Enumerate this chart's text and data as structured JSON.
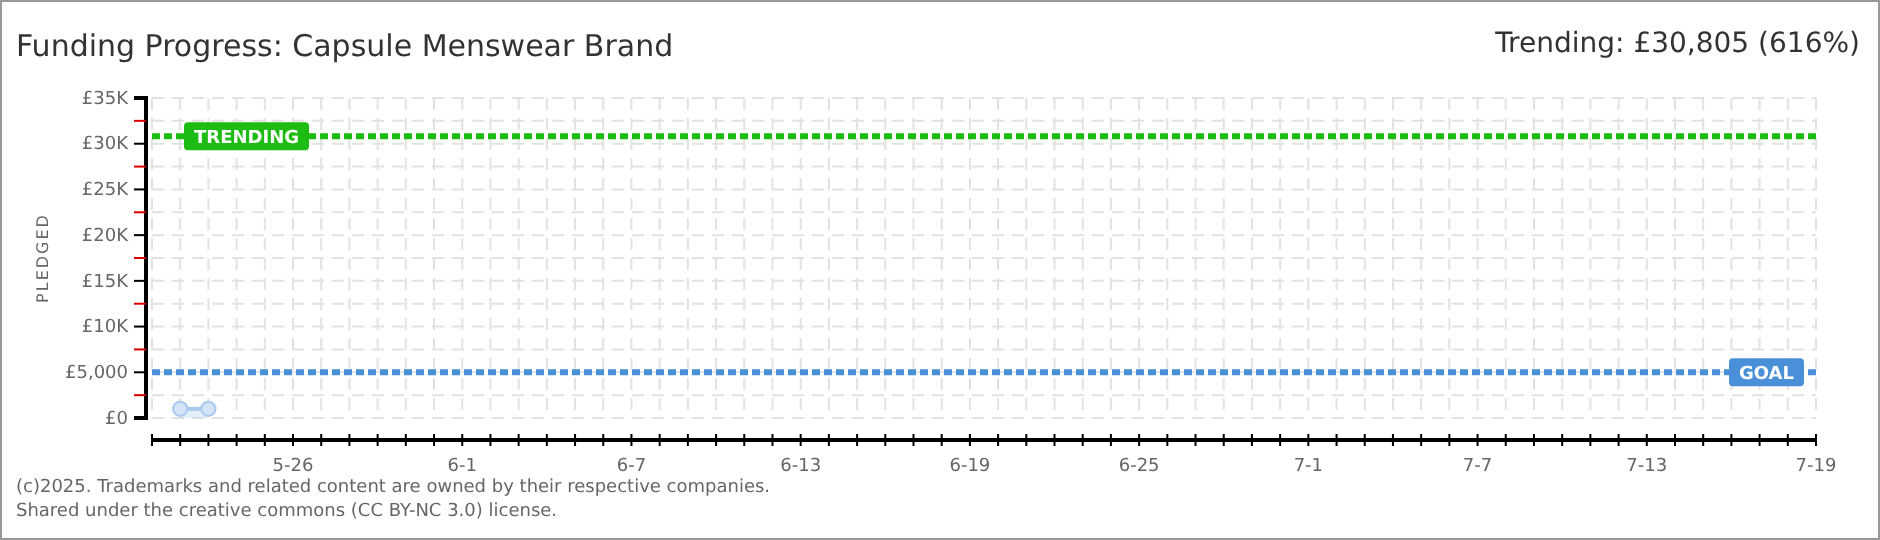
{
  "chart_data": {
    "type": "area",
    "title": "Funding Progress: Capsule Menswear Brand",
    "ylabel": "PLEDGED",
    "annotations": [
      "Trending:  £30,805 (616%)",
      "(c)2025. Trademarks and related content are owned by their respective companies.",
      "Shared under the creative commons (CC BY-NC 3.0) license."
    ],
    "x": [
      "--05-22",
      "--05-23"
    ],
    "series": [
      {
        "color": "#a9c9ef",
        "values": [
          1000,
          1000
        ]
      }
    ],
    "marker": "circle",
    "grid": true,
    "xlim": [
      "--05-21",
      "--07-19"
    ],
    "xticks": [
      {
        "value": "--05-21",
        "label": null
      },
      {
        "value": "--05-22",
        "label": null
      },
      {
        "value": "--05-23",
        "label": null
      },
      {
        "value": "--05-24",
        "label": null
      },
      {
        "value": "--05-25",
        "label": null
      },
      {
        "value": "--05-26",
        "label": "5-26"
      },
      {
        "value": "--05-27",
        "label": null
      },
      {
        "value": "--05-28",
        "label": null
      },
      {
        "value": "--05-29",
        "label": null
      },
      {
        "value": "--05-30",
        "label": null
      },
      {
        "value": "--05-31",
        "label": null
      },
      {
        "value": "--06-01",
        "label": "6-1"
      },
      {
        "value": "--06-02",
        "label": null
      },
      {
        "value": "--06-03",
        "label": null
      },
      {
        "value": "--06-04",
        "label": null
      },
      {
        "value": "--06-05",
        "label": null
      },
      {
        "value": "--06-06",
        "label": null
      },
      {
        "value": "--06-07",
        "label": "6-7"
      },
      {
        "value": "--06-08",
        "label": null
      },
      {
        "value": "--06-09",
        "label": null
      },
      {
        "value": "--06-10",
        "label": null
      },
      {
        "value": "--06-11",
        "label": null
      },
      {
        "value": "--06-12",
        "label": null
      },
      {
        "value": "--06-13",
        "label": "6-13"
      },
      {
        "value": "--06-14",
        "label": null
      },
      {
        "value": "--06-15",
        "label": null
      },
      {
        "value": "--06-16",
        "label": null
      },
      {
        "value": "--06-17",
        "label": null
      },
      {
        "value": "--06-18",
        "label": null
      },
      {
        "value": "--06-19",
        "label": "6-19"
      },
      {
        "value": "--06-20",
        "label": null
      },
      {
        "value": "--06-21",
        "label": null
      },
      {
        "value": "--06-22",
        "label": null
      },
      {
        "value": "--06-23",
        "label": null
      },
      {
        "value": "--06-24",
        "label": null
      },
      {
        "value": "--06-25",
        "label": "6-25"
      },
      {
        "value": "--06-26",
        "label": null
      },
      {
        "value": "--06-27",
        "label": null
      },
      {
        "value": "--06-28",
        "label": null
      },
      {
        "value": "--06-29",
        "label": null
      },
      {
        "value": "--06-30",
        "label": null
      },
      {
        "value": "--07-01",
        "label": "7-1"
      },
      {
        "value": "--07-02",
        "label": null
      },
      {
        "value": "--07-03",
        "label": null
      },
      {
        "value": "--07-04",
        "label": null
      },
      {
        "value": "--07-05",
        "label": null
      },
      {
        "value": "--07-06",
        "label": null
      },
      {
        "value": "--07-07",
        "label": "7-7"
      },
      {
        "value": "--07-08",
        "label": null
      },
      {
        "value": "--07-09",
        "label": null
      },
      {
        "value": "--07-10",
        "label": null
      },
      {
        "value": "--07-11",
        "label": null
      },
      {
        "value": "--07-12",
        "label": null
      },
      {
        "value": "--07-13",
        "label": "7-13"
      },
      {
        "value": "--07-14",
        "label": null
      },
      {
        "value": "--07-15",
        "label": null
      },
      {
        "value": "--07-16",
        "label": null
      },
      {
        "value": "--07-17",
        "label": null
      },
      {
        "value": "--07-18",
        "label": null
      },
      {
        "value": "--07-19",
        "label": "7-19"
      }
    ],
    "ylim": [
      0,
      35000
    ],
    "yticks": [
      {
        "value": 0,
        "label": "£0"
      },
      {
        "value": 2500,
        "label": null
      },
      {
        "value": 5000,
        "label": "£5,000"
      },
      {
        "value": 7500,
        "label": null
      },
      {
        "value": 10000,
        "label": "£10K"
      },
      {
        "value": 12500,
        "label": null
      },
      {
        "value": 15000,
        "label": "£15K"
      },
      {
        "value": 17500,
        "label": null
      },
      {
        "value": 20000,
        "label": "£20K"
      },
      {
        "value": 22500,
        "label": null
      },
      {
        "value": 25000,
        "label": "£25K"
      },
      {
        "value": 27500,
        "label": null
      },
      {
        "value": 30000,
        "label": "£30K"
      },
      {
        "value": 32500,
        "label": null
      },
      {
        "value": 35000,
        "label": "£35K"
      }
    ],
    "ref_lines": [
      {
        "axis": "y",
        "value": 30805,
        "label": "TRENDING",
        "color": "#1cbc12",
        "line_style": "dashed"
      },
      {
        "axis": "y",
        "value": 5000,
        "label": "GOAL",
        "color": "#4a90d9",
        "line_style": "dashed"
      }
    ]
  }
}
